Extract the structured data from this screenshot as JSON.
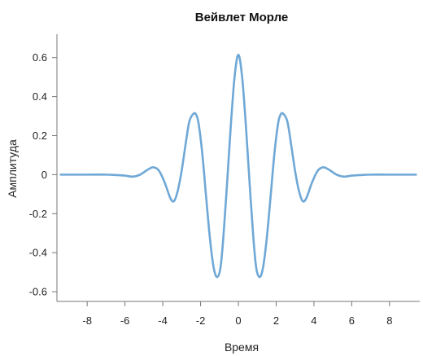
{
  "chart_data": {
    "type": "line",
    "title": "Вейвлет Морле",
    "xlabel": "Время",
    "ylabel": "Амплитуда",
    "xlim": [
      -9.6,
      9.6
    ],
    "ylim": [
      -0.65,
      0.72
    ],
    "xticks": [
      -8,
      -6,
      -4,
      -2,
      0,
      2,
      4,
      6,
      8
    ],
    "xtick_labels": [
      "-8",
      "-6",
      "-4",
      "-2",
      "0",
      "2",
      "4",
      "6",
      "8"
    ],
    "yticks": [
      0.6,
      0.4,
      0.2,
      0,
      -0.2,
      -0.4,
      -0.6
    ],
    "ytick_labels": [
      "0.6",
      "0.4",
      "0.2",
      "0",
      "-0.2",
      "-0.4",
      "-0.6"
    ],
    "grid": false,
    "colors": {
      "line": "#6fa8d6",
      "axis": "#777777"
    },
    "series": [
      {
        "x": [
          -9.4,
          -8.0,
          -7.0,
          -6.5,
          -6.0,
          -5.6,
          -5.2,
          -4.8,
          -4.5,
          -4.2,
          -3.9,
          -3.6,
          -3.4,
          -3.2,
          -3.0,
          -2.8,
          -2.6,
          -2.4,
          -2.25,
          -2.1,
          -1.9,
          -1.7,
          -1.5,
          -1.3,
          -1.12,
          -0.95,
          -0.8,
          -0.6,
          -0.4,
          -0.2,
          0.0,
          0.2,
          0.4,
          0.6,
          0.8,
          0.95,
          1.12,
          1.3,
          1.5,
          1.7,
          1.9,
          2.1,
          2.25,
          2.4,
          2.6,
          2.8,
          3.0,
          3.2,
          3.4,
          3.6,
          3.9,
          4.2,
          4.5,
          4.8,
          5.2,
          5.6,
          6.0,
          6.5,
          7.0,
          8.0,
          9.4
        ],
        "y": [
          0.0,
          0.0,
          0.0,
          -0.002,
          -0.005,
          -0.01,
          0.0,
          0.025,
          0.038,
          0.02,
          -0.04,
          -0.12,
          -0.135,
          -0.08,
          0.02,
          0.15,
          0.27,
          0.31,
          0.31,
          0.26,
          0.1,
          -0.12,
          -0.33,
          -0.48,
          -0.525,
          -0.48,
          -0.33,
          -0.05,
          0.25,
          0.5,
          0.615,
          0.5,
          0.25,
          -0.05,
          -0.33,
          -0.48,
          -0.525,
          -0.48,
          -0.33,
          -0.12,
          0.1,
          0.26,
          0.31,
          0.31,
          0.27,
          0.15,
          0.02,
          -0.08,
          -0.135,
          -0.12,
          -0.04,
          0.02,
          0.038,
          0.025,
          0.0,
          -0.01,
          -0.005,
          -0.002,
          0.0,
          0.0,
          0.0
        ]
      }
    ]
  }
}
